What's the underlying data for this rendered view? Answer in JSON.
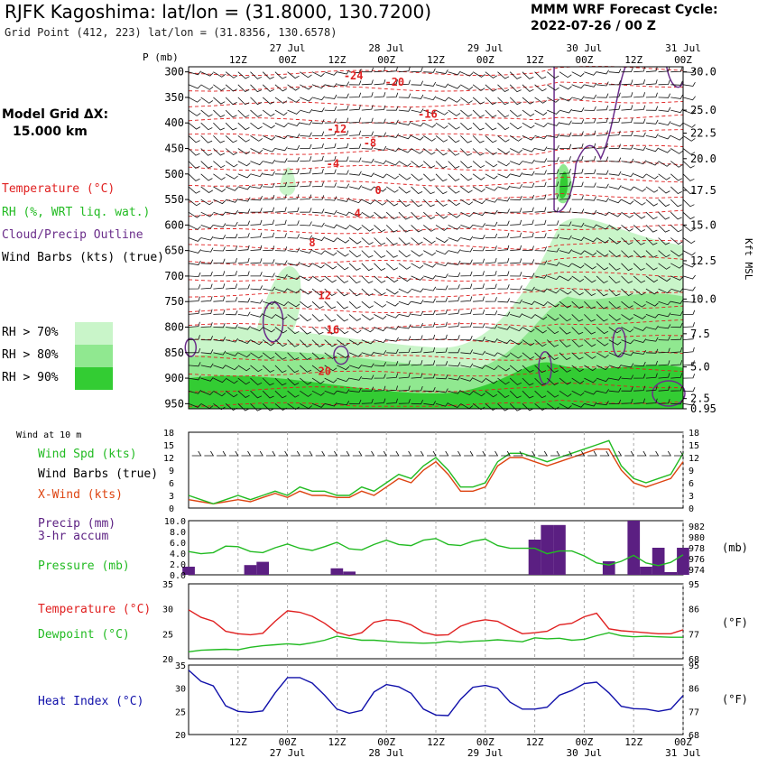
{
  "header": {
    "title": "RJFK Kagoshima:  lat/lon = (31.8000, 130.7200)",
    "subtitle": "Grid Point (412, 223) lat/lon = (31.8356, 130.6578)",
    "cycle_line1": "MMM WRF Forecast Cycle:",
    "cycle_line2": "2022-07-26 / 00  Z",
    "grid_line1": "Model Grid ΔX:",
    "grid_line2": "15.000 km"
  },
  "legend": {
    "temperature": "Temperature (°C)",
    "rh": "RH (%, WRT liq. wat.)",
    "cloud": "Cloud/Precip Outline",
    "barbs": "Wind Barbs (kts) (true)",
    "rh70": "RH > 70%",
    "rh80": "RH > 80%",
    "rh90": "RH > 90%"
  },
  "colors": {
    "temp": "#e02020",
    "rh70": "#c9f5c9",
    "rh80": "#90e890",
    "rh90": "#33cc33",
    "cloud": "#6a2d8a",
    "wind_spd": "#22bb22",
    "xwind": "#dd4411",
    "precip": "#5b1f82",
    "pressure": "#22bb22",
    "heat_index": "#1010aa"
  },
  "time_axis": {
    "hour_labels": [
      "12Z",
      "00Z",
      "12Z",
      "00Z",
      "12Z",
      "00Z",
      "12Z",
      "00Z",
      "12Z",
      "00Z"
    ],
    "hour_positions": [
      12,
      24,
      36,
      48,
      60,
      72,
      84,
      96,
      108,
      120
    ],
    "day_labels": [
      "27 Jul",
      "28 Jul",
      "29 Jul",
      "30 Jul",
      "31 Jul"
    ],
    "day_positions": [
      24,
      48,
      72,
      96,
      120
    ]
  },
  "chart_data": [
    {
      "type": "contour",
      "name": "cross-section",
      "xlabel": "Forecast hour",
      "ylabel": "P (mb)",
      "p_label": "P (mb)",
      "x_range": [
        0,
        120
      ],
      "p_range": [
        960,
        290
      ],
      "pressure_ticks": [
        300,
        350,
        400,
        450,
        500,
        550,
        600,
        650,
        700,
        750,
        800,
        850,
        900,
        950
      ],
      "height_ticks": [
        {
          "p": 300,
          "label": "30.0"
        },
        {
          "p": 375,
          "label": "25.0"
        },
        {
          "p": 420,
          "label": "22.5"
        },
        {
          "p": 470,
          "label": "20.0"
        },
        {
          "p": 532,
          "label": "17.5"
        },
        {
          "p": 600,
          "label": "15.0"
        },
        {
          "p": 670,
          "label": "12.5"
        },
        {
          "p": 745,
          "label": "10.0"
        },
        {
          "p": 813,
          "label": "7.5"
        },
        {
          "p": 878,
          "label": "5.0"
        },
        {
          "p": 940,
          "label": "2.5"
        },
        {
          "p": 960,
          "label": "0.95"
        }
      ],
      "height_unit": "Kft MSL",
      "temp_labels": [
        {
          "t": 40,
          "p": 308,
          "label": "-24"
        },
        {
          "t": 50,
          "p": 320,
          "label": "-20"
        },
        {
          "t": 58,
          "p": 383,
          "label": "-16"
        },
        {
          "t": 36,
          "p": 412,
          "label": "-12"
        },
        {
          "t": 44,
          "p": 439,
          "label": "-8"
        },
        {
          "t": 35,
          "p": 480,
          "label": "-4"
        },
        {
          "t": 46,
          "p": 532,
          "label": "0"
        },
        {
          "t": 41,
          "p": 577,
          "label": "4"
        },
        {
          "t": 30,
          "p": 635,
          "label": "8"
        },
        {
          "t": 33,
          "p": 738,
          "label": "12"
        },
        {
          "t": 35,
          "p": 805,
          "label": "16"
        },
        {
          "t": 33,
          "p": 887,
          "label": "20"
        }
      ]
    },
    {
      "type": "line",
      "name": "wind-at-10m",
      "title": "Wind at 10 m",
      "labels": {
        "spd": "Wind Spd (kts)",
        "barbs": "Wind Barbs (true)",
        "xwind": "X-Wind (kts)"
      },
      "ylim": [
        0,
        18
      ],
      "y_ticks_left": [
        0,
        3,
        6,
        9,
        12,
        15,
        18
      ],
      "y_ticks_right": [
        0,
        3,
        6,
        9,
        12,
        15,
        18
      ],
      "x": [
        0,
        3,
        6,
        9,
        12,
        15,
        18,
        21,
        24,
        27,
        30,
        33,
        36,
        39,
        42,
        45,
        48,
        51,
        54,
        57,
        60,
        63,
        66,
        69,
        72,
        75,
        78,
        81,
        84,
        87,
        90,
        93,
        96,
        99,
        102,
        105,
        108,
        111,
        114,
        117,
        120
      ],
      "series": [
        {
          "name": "Wind Spd (kts)",
          "values": [
            3,
            2,
            1,
            2,
            3,
            2,
            3,
            4,
            3,
            5,
            4,
            4,
            3,
            3,
            5,
            4,
            6,
            8,
            7,
            10,
            12,
            9,
            5,
            5,
            6,
            11,
            13,
            13,
            12,
            11,
            12,
            13,
            14,
            15,
            16,
            10,
            7,
            6,
            7,
            8,
            13
          ]
        },
        {
          "name": "X-Wind (kts)",
          "values": [
            2,
            1.5,
            1,
            1.5,
            2,
            1.5,
            2.5,
            3.5,
            2.5,
            4,
            3,
            3,
            2.5,
            2.5,
            4,
            3,
            5,
            7,
            6,
            9,
            11,
            8,
            4,
            4,
            5,
            10,
            12,
            12,
            11,
            10,
            11,
            12,
            13,
            14,
            14,
            9,
            6,
            5,
            6,
            7,
            11
          ]
        }
      ]
    },
    {
      "type": "bar",
      "name": "precip-pressure",
      "labels": {
        "precip": "Precip (mm)",
        "accum": "3-hr accum",
        "pressure": "Pressure (mb)"
      },
      "precip_ylim": [
        0,
        10
      ],
      "precip_ticks": [
        "0.0",
        "2.0",
        "4.0",
        "6.0",
        "8.0",
        "10.0"
      ],
      "pressure_ylim": [
        973,
        983
      ],
      "pressure_ticks": [
        974,
        976,
        978,
        980,
        982
      ],
      "pressure_unit": "(mb)",
      "precip": [
        {
          "t": 0,
          "mm": 1.5
        },
        {
          "t": 15,
          "mm": 1.8
        },
        {
          "t": 18,
          "mm": 2.4
        },
        {
          "t": 36,
          "mm": 1.2
        },
        {
          "t": 39,
          "mm": 0.6
        },
        {
          "t": 84,
          "mm": 6.5
        },
        {
          "t": 87,
          "mm": 9.2
        },
        {
          "t": 90,
          "mm": 9.2
        },
        {
          "t": 102,
          "mm": 2.5
        },
        {
          "t": 108,
          "mm": 10.0
        },
        {
          "t": 111,
          "mm": 1.5
        },
        {
          "t": 114,
          "mm": 5.0
        },
        {
          "t": 117,
          "mm": 0.5
        },
        {
          "t": 120,
          "mm": 5.0
        }
      ],
      "pressure_x": [
        0,
        3,
        6,
        9,
        12,
        15,
        18,
        21,
        24,
        27,
        30,
        33,
        36,
        39,
        42,
        45,
        48,
        51,
        54,
        57,
        60,
        63,
        66,
        69,
        72,
        75,
        78,
        81,
        84,
        87,
        90,
        93,
        96,
        99,
        102,
        105,
        108,
        111,
        114,
        117,
        120
      ],
      "pressure": [
        977.3,
        976.9,
        977.1,
        978.3,
        978.2,
        977.3,
        977.1,
        978.0,
        978.7,
        977.9,
        977.5,
        978.2,
        979.0,
        977.8,
        977.6,
        978.6,
        979.4,
        978.6,
        978.4,
        979.4,
        979.7,
        978.6,
        978.4,
        979.2,
        979.6,
        978.4,
        977.9,
        977.9,
        977.9,
        976.9,
        977.4,
        977.4,
        976.5,
        975.2,
        974.8,
        975.5,
        976.6,
        975.2,
        974.7,
        975.3,
        976.7
      ]
    },
    {
      "type": "line",
      "name": "temp-dewpoint",
      "labels": {
        "temp": "Temperature (°C)",
        "dew": "Dewpoint (°C)"
      },
      "ylim": [
        20,
        35
      ],
      "y_ticks": [
        20,
        25,
        30,
        35
      ],
      "f_ticks": [
        {
          "c": 20,
          "label": "68"
        },
        {
          "c": 25,
          "label": "77"
        },
        {
          "c": 30,
          "label": "86"
        },
        {
          "c": 35,
          "label": "95"
        }
      ],
      "f_unit": "(°F)",
      "x": [
        0,
        3,
        6,
        9,
        12,
        15,
        18,
        21,
        24,
        27,
        30,
        33,
        36,
        39,
        42,
        45,
        48,
        51,
        54,
        57,
        60,
        63,
        66,
        69,
        72,
        75,
        78,
        81,
        84,
        87,
        90,
        93,
        96,
        99,
        102,
        105,
        108,
        111,
        114,
        117,
        120
      ],
      "series": [
        {
          "name": "Temperature (°C)",
          "values": [
            29.8,
            28.3,
            27.5,
            25.5,
            25,
            24.8,
            25.1,
            27.5,
            29.6,
            29.3,
            28.5,
            27.1,
            25.3,
            24.6,
            25.2,
            27.3,
            27.8,
            27.6,
            26.8,
            25.3,
            24.7,
            24.8,
            26.5,
            27.4,
            27.8,
            27.5,
            26.2,
            25.0,
            25.2,
            25.5,
            26.8,
            27.1,
            28.4,
            29.1,
            26.0,
            25.6,
            25.4,
            25.2,
            25.0,
            25.0,
            25.8
          ]
        },
        {
          "name": "Dewpoint (°C)",
          "values": [
            21.4,
            21.7,
            21.8,
            21.9,
            21.8,
            22.3,
            22.6,
            22.8,
            23.0,
            22.8,
            23.2,
            23.7,
            24.5,
            24.1,
            23.7,
            23.7,
            23.5,
            23.3,
            23.2,
            23.1,
            23.2,
            23.5,
            23.3,
            23.5,
            23.6,
            23.8,
            23.6,
            23.4,
            24.2,
            24.0,
            24.1,
            23.7,
            23.9,
            24.6,
            25.2,
            24.6,
            24.4,
            24.5,
            24.4,
            24.3,
            24.3
          ]
        }
      ]
    },
    {
      "type": "line",
      "name": "heat-index",
      "labels": {
        "hi": "Heat Index (°C)"
      },
      "ylim": [
        20,
        35
      ],
      "y_ticks": [
        20,
        25,
        30,
        35
      ],
      "f_ticks": [
        {
          "c": 20,
          "label": "68"
        },
        {
          "c": 25,
          "label": "77"
        },
        {
          "c": 30,
          "label": "86"
        },
        {
          "c": 35,
          "label": "95"
        }
      ],
      "f_unit": "(°F)",
      "x": [
        0,
        3,
        6,
        9,
        12,
        15,
        18,
        21,
        24,
        27,
        30,
        33,
        36,
        39,
        42,
        45,
        48,
        51,
        54,
        57,
        60,
        63,
        66,
        69,
        72,
        75,
        78,
        81,
        84,
        87,
        90,
        93,
        96,
        99,
        102,
        105,
        108,
        111,
        114,
        117,
        120
      ],
      "series": [
        {
          "name": "Heat Index (°C)",
          "values": [
            33.9,
            31.5,
            30.5,
            26.2,
            25,
            24.8,
            25.1,
            29.0,
            32.3,
            32.3,
            31.1,
            28.5,
            25.5,
            24.6,
            25.2,
            29.2,
            30.8,
            30.3,
            28.9,
            25.5,
            24.2,
            24.1,
            27.6,
            30.2,
            30.6,
            30.0,
            27.0,
            25.5,
            25.5,
            25.9,
            28.5,
            29.5,
            31.0,
            31.3,
            29.0,
            26.1,
            25.6,
            25.5,
            25.0,
            25.5,
            28.4
          ]
        }
      ]
    }
  ]
}
